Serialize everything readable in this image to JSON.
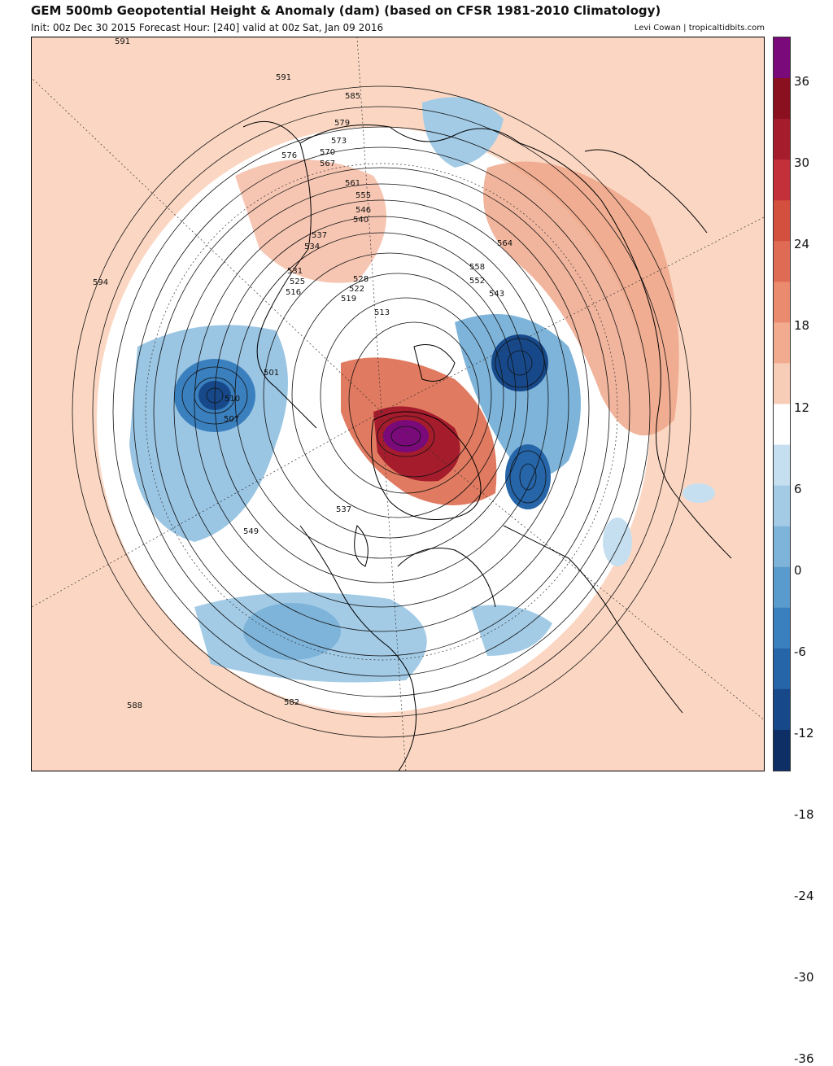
{
  "header": {
    "title": "GEM 500mb Geopotential Height & Anomaly (dam) (based on CFSR 1981-2010 Climatology)",
    "subtitle": "Init: 00z Dec 30 2015   Forecast Hour: [240]   valid at 00z Sat, Jan 09 2016",
    "credit": "Levi Cowan | tropicaltidbits.com"
  },
  "colorbar": {
    "ticks": [
      "36",
      "30",
      "24",
      "18",
      "12",
      "6",
      "0",
      "-6",
      "-12",
      "-18",
      "-24",
      "-30",
      "-36"
    ],
    "colors": [
      "#7a0a7a",
      "#8a1020",
      "#a51c2c",
      "#c4303a",
      "#d4503e",
      "#e06b55",
      "#ea8a6e",
      "#f2ab8f",
      "#f8cdb7",
      "#ffffff",
      "#c6dff0",
      "#a3cbe6",
      "#7eb4da",
      "#5a9bcd",
      "#3a7fbe",
      "#2565a8",
      "#17498a",
      "#0d2f66"
    ]
  },
  "contour_labels": [
    "591",
    "591",
    "585",
    "579",
    "576",
    "573",
    "570",
    "567",
    "561",
    "555",
    "546",
    "540",
    "537",
    "534",
    "531",
    "525",
    "522",
    "519",
    "516",
    "513",
    "510",
    "507",
    "501",
    "528",
    "552",
    "558",
    "564",
    "543",
    "549",
    "594",
    "582",
    "588",
    "537"
  ],
  "features": {
    "background_anomaly": "positive-light",
    "polar_cap": "neutral",
    "lows": [
      "west-pacific-low",
      "eastern-canada-low",
      "siberian-low",
      "pacific-low"
    ],
    "highs": [
      "greenland-ridge",
      "arctic-ridge"
    ]
  }
}
